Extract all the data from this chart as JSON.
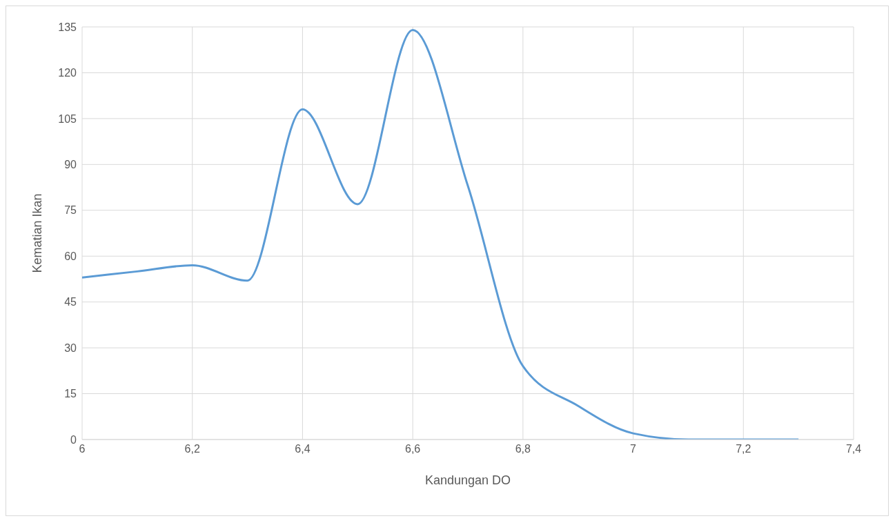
{
  "chart_data": {
    "type": "line",
    "xlabel": "Kandungan DO",
    "ylabel": "Kematian Ikan",
    "x": [
      6,
      6.1,
      6.2,
      6.3,
      6.4,
      6.5,
      6.6,
      6.7,
      6.8,
      6.9,
      7,
      7.1,
      7.2,
      7.3
    ],
    "series": [
      {
        "color": "#5b9bd5",
        "values": [
          53,
          55,
          57,
          52,
          108,
          77,
          134,
          83,
          24,
          11,
          2,
          0,
          0,
          0
        ]
      }
    ],
    "xlim": [
      6,
      7.4
    ],
    "xticks": [
      6,
      {
        "value": 6.2,
        "label": "6,2"
      },
      {
        "value": 6.4,
        "label": "6,4"
      },
      {
        "value": 6.6,
        "label": "6,6"
      },
      {
        "value": 6.8,
        "label": "6,8"
      },
      7,
      {
        "value": 7.2,
        "label": "7,2"
      },
      {
        "value": 7.4,
        "label": "7,4"
      }
    ],
    "ylim": [
      0,
      135
    ],
    "yticks": [
      0,
      15,
      30,
      45,
      60,
      75,
      90,
      105,
      120,
      135
    ],
    "grid": true,
    "marker": "none",
    "line_style": "solid",
    "legend": false
  }
}
